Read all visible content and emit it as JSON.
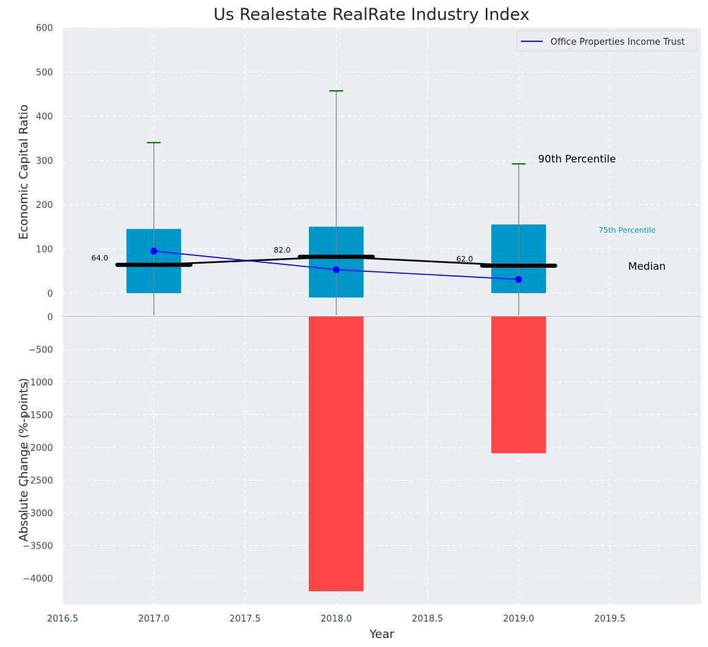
{
  "chart_data": {
    "type": "bar",
    "title": "Us Realestate RealRate Industry Index",
    "xlabel": "Year",
    "xlim": [
      2016.5,
      2020.0
    ],
    "x_ticks": [
      "2016.5",
      "2017.0",
      "2017.5",
      "2018.0",
      "2018.5",
      "2019.0",
      "2019.5"
    ],
    "grid": true,
    "legend_position": "top-right",
    "top_panel": {
      "ylabel": "Economic Capital Ratio",
      "ylim": [
        -50,
        600
      ],
      "y_ticks": [
        "0",
        "100",
        "200",
        "300",
        "400",
        "500",
        "600"
      ],
      "years": [
        2017,
        2018,
        2019
      ],
      "percentile_75": [
        145,
        150,
        155
      ],
      "percentile_25": [
        0,
        -10,
        0
      ],
      "percentile_90": [
        340,
        457,
        292
      ],
      "medians": [
        64.0,
        82.0,
        62.0
      ],
      "median_labels": [
        "64.0",
        "82.0",
        "62.0"
      ],
      "series": [
        {
          "name": "Office Properties Income Trust",
          "values": [
            95,
            53,
            31
          ],
          "color": "#0000ff"
        }
      ],
      "annotations": {
        "p90": "90th Percentile",
        "p75": "75th Percentile",
        "median": "Median"
      }
    },
    "bottom_panel": {
      "ylabel": "Absolute Change (%-points)",
      "ylim": [
        -4400,
        0
      ],
      "y_ticks": [
        "0",
        "−500",
        "−1000",
        "−1500",
        "−2000",
        "−2500",
        "−3000",
        "−3500",
        "−4000"
      ],
      "years": [
        2017,
        2018,
        2019
      ],
      "values": [
        0,
        -4200,
        -2090
      ]
    },
    "colors": {
      "bar_top": "#0097ca",
      "bar_bottom": "#ff3c3c",
      "median": "#000000",
      "whisker_cap": "#008000",
      "whisker": "#808080",
      "series": "#0000ff",
      "background": "#eaeef0",
      "p75_text": "#0097ca"
    }
  }
}
